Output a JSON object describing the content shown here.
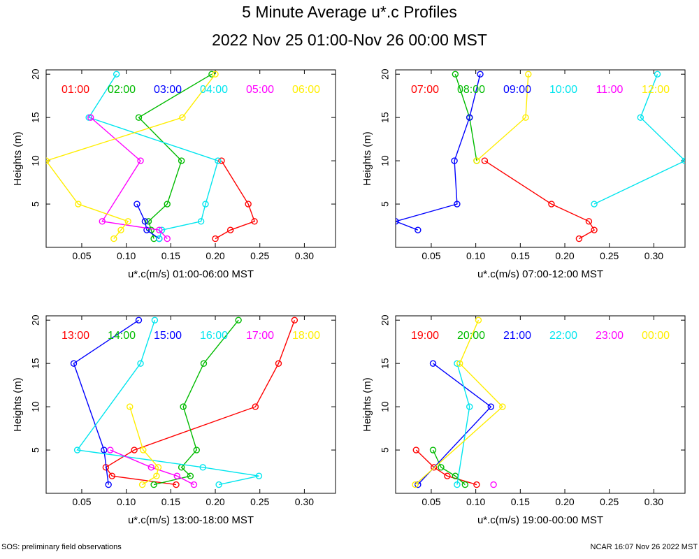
{
  "header": {
    "title": "5 Minute Average u*.c Profiles",
    "subtitle": "2022 Nov 25 01:00-Nov 26 00:00 MST"
  },
  "footer": {
    "left": "SOS: preliminary field observations",
    "right": "NCAR 16:07 Nov 26 2022 MST"
  },
  "colors": [
    "#ff0000",
    "#00bb00",
    "#0000ff",
    "#00e5ee",
    "#ff00ff",
    "#ffee00"
  ],
  "chart_data": [
    {
      "type": "line",
      "xlabel": "u*.c(m/s) 01:00-06:00 MST",
      "ylabel": "Heights (m)",
      "xlim": [
        0.01,
        0.335
      ],
      "ylim": [
        0,
        20.5
      ],
      "xticks": [
        0.05,
        0.1,
        0.15,
        0.2,
        0.25,
        0.3
      ],
      "xtick_labels": [
        "0.05",
        "0.10",
        "0.15",
        "0.20",
        "0.25",
        "0.30"
      ],
      "yticks": [
        5,
        10,
        15,
        20
      ],
      "ytick_labels": [
        "5",
        "10",
        "15",
        "20"
      ],
      "series": [
        {
          "name": "01:00",
          "points": [
            [
              0.2,
              1
            ],
            [
              0.217,
              2
            ],
            [
              0.244,
              3
            ],
            [
              0.237,
              5
            ],
            [
              0.207,
              10
            ]
          ]
        },
        {
          "name": "02:00",
          "points": [
            [
              0.131,
              1
            ],
            [
              0.128,
              2
            ],
            [
              0.125,
              3
            ],
            [
              0.146,
              5
            ],
            [
              0.162,
              10
            ],
            [
              0.114,
              15
            ],
            [
              0.196,
              20
            ]
          ]
        },
        {
          "name": "03:00",
          "points": [
            [
              0.137,
              1
            ],
            [
              0.123,
              2
            ],
            [
              0.121,
              3
            ],
            [
              0.112,
              5
            ]
          ]
        },
        {
          "name": "04:00",
          "points": [
            [
              0.137,
              1
            ],
            [
              0.14,
              2
            ],
            [
              0.184,
              3
            ],
            [
              0.189,
              5
            ],
            [
              0.203,
              10
            ],
            [
              0.058,
              15
            ],
            [
              0.089,
              20
            ]
          ]
        },
        {
          "name": "05:00",
          "points": [
            [
              0.146,
              1
            ],
            [
              0.137,
              2
            ],
            [
              0.073,
              3
            ],
            [
              0.116,
              10
            ],
            [
              0.06,
              15
            ]
          ]
        },
        {
          "name": "06:00",
          "points": [
            [
              0.086,
              1
            ],
            [
              0.094,
              2
            ],
            [
              0.102,
              3
            ],
            [
              0.046,
              5
            ],
            [
              0.01,
              10
            ],
            [
              0.163,
              15
            ],
            [
              0.2,
              20
            ]
          ]
        }
      ]
    },
    {
      "type": "line",
      "xlabel": "u*.c(m/s) 07:00-12:00 MST",
      "ylabel": "Heights (m)",
      "xlim": [
        0.01,
        0.335
      ],
      "ylim": [
        0,
        20.5
      ],
      "xticks": [
        0.05,
        0.1,
        0.15,
        0.2,
        0.25,
        0.3
      ],
      "xtick_labels": [
        "0.05",
        "0.10",
        "0.15",
        "0.20",
        "0.25",
        "0.30"
      ],
      "yticks": [
        5,
        10,
        15,
        20
      ],
      "ytick_labels": [
        "5",
        "10",
        "15",
        "20"
      ],
      "series": [
        {
          "name": "07:00",
          "points": [
            [
              0.216,
              1
            ],
            [
              0.233,
              2
            ],
            [
              0.227,
              3
            ],
            [
              0.185,
              5
            ],
            [
              0.11,
              10
            ]
          ]
        },
        {
          "name": "08:00",
          "points": [
            [
              0.101,
              10
            ],
            [
              0.093,
              15
            ],
            [
              0.077,
              20
            ]
          ]
        },
        {
          "name": "09:00",
          "points": [
            [
              0.035,
              2
            ],
            [
              0.01,
              3
            ],
            [
              0.079,
              5
            ],
            [
              0.076,
              10
            ],
            [
              0.093,
              15
            ],
            [
              0.105,
              20
            ]
          ]
        },
        {
          "name": "10:00",
          "points": [
            [
              0.233,
              5
            ],
            [
              0.335,
              10
            ],
            [
              0.285,
              15
            ],
            [
              0.304,
              20
            ]
          ]
        },
        {
          "name": "11:00",
          "points": []
        },
        {
          "name": "12:00",
          "points": [
            [
              0.101,
              10
            ],
            [
              0.156,
              15
            ],
            [
              0.159,
              20
            ]
          ]
        }
      ]
    },
    {
      "type": "line",
      "xlabel": "u*.c(m/s) 13:00-18:00 MST",
      "ylabel": "Heights (m)",
      "xlim": [
        0.01,
        0.335
      ],
      "ylim": [
        0,
        20.5
      ],
      "xticks": [
        0.05,
        0.1,
        0.15,
        0.2,
        0.25,
        0.3
      ],
      "xtick_labels": [
        "0.05",
        "0.10",
        "0.15",
        "0.20",
        "0.25",
        "0.30"
      ],
      "yticks": [
        5,
        10,
        15,
        20
      ],
      "ytick_labels": [
        "5",
        "10",
        "15",
        "20"
      ],
      "series": [
        {
          "name": "13:00",
          "points": [
            [
              0.156,
              1
            ],
            [
              0.084,
              2
            ],
            [
              0.077,
              3
            ],
            [
              0.109,
              5
            ],
            [
              0.245,
              10
            ],
            [
              0.271,
              15
            ],
            [
              0.289,
              20
            ]
          ]
        },
        {
          "name": "14:00",
          "points": [
            [
              0.131,
              1
            ],
            [
              0.172,
              2
            ],
            [
              0.162,
              3
            ],
            [
              0.179,
              5
            ],
            [
              0.164,
              10
            ],
            [
              0.187,
              15
            ],
            [
              0.226,
              20
            ]
          ]
        },
        {
          "name": "15:00",
          "points": [
            [
              0.08,
              1
            ],
            [
              0.075,
              5
            ],
            [
              0.041,
              15
            ],
            [
              0.114,
              20
            ]
          ]
        },
        {
          "name": "16:00",
          "points": [
            [
              0.204,
              1
            ],
            [
              0.249,
              2
            ],
            [
              0.186,
              3
            ],
            [
              0.045,
              5
            ],
            [
              0.116,
              15
            ],
            [
              0.132,
              20
            ]
          ]
        },
        {
          "name": "17:00",
          "points": [
            [
              0.176,
              1
            ],
            [
              0.157,
              2
            ],
            [
              0.128,
              3
            ],
            [
              0.082,
              5
            ]
          ]
        },
        {
          "name": "18:00",
          "points": [
            [
              0.118,
              1
            ],
            [
              0.134,
              2
            ],
            [
              0.136,
              3
            ],
            [
              0.119,
              5
            ],
            [
              0.104,
              10
            ]
          ]
        }
      ]
    },
    {
      "type": "line",
      "xlabel": "u*.c(m/s) 19:00-00:00 MST",
      "ylabel": "Heights (m)",
      "xlim": [
        0.01,
        0.335
      ],
      "ylim": [
        0,
        20.5
      ],
      "xticks": [
        0.05,
        0.1,
        0.15,
        0.2,
        0.25,
        0.3
      ],
      "xtick_labels": [
        "0.05",
        "0.10",
        "0.15",
        "0.20",
        "0.25",
        "0.30"
      ],
      "yticks": [
        5,
        10,
        15,
        20
      ],
      "ytick_labels": [
        "5",
        "10",
        "15",
        "20"
      ],
      "series": [
        {
          "name": "19:00",
          "points": [
            [
              0.101,
              1
            ],
            [
              0.068,
              2
            ],
            [
              0.053,
              3
            ],
            [
              0.033,
              5
            ]
          ]
        },
        {
          "name": "20:00",
          "points": [
            [
              0.088,
              1
            ],
            [
              0.077,
              2
            ],
            [
              0.061,
              3
            ],
            [
              0.052,
              5
            ]
          ]
        },
        {
          "name": "21:00",
          "points": [
            [
              0.035,
              1
            ],
            [
              0.117,
              10
            ],
            [
              0.052,
              15
            ]
          ]
        },
        {
          "name": "22:00",
          "points": [
            [
              0.079,
              1
            ],
            [
              0.093,
              10
            ],
            [
              0.079,
              15
            ]
          ]
        },
        {
          "name": "23:00",
          "points": [
            [
              0.12,
              1
            ]
          ]
        },
        {
          "name": "00:00",
          "points": [
            [
              0.032,
              1
            ],
            [
              0.13,
              10
            ],
            [
              0.082,
              15
            ],
            [
              0.103,
              20
            ]
          ]
        }
      ]
    }
  ]
}
